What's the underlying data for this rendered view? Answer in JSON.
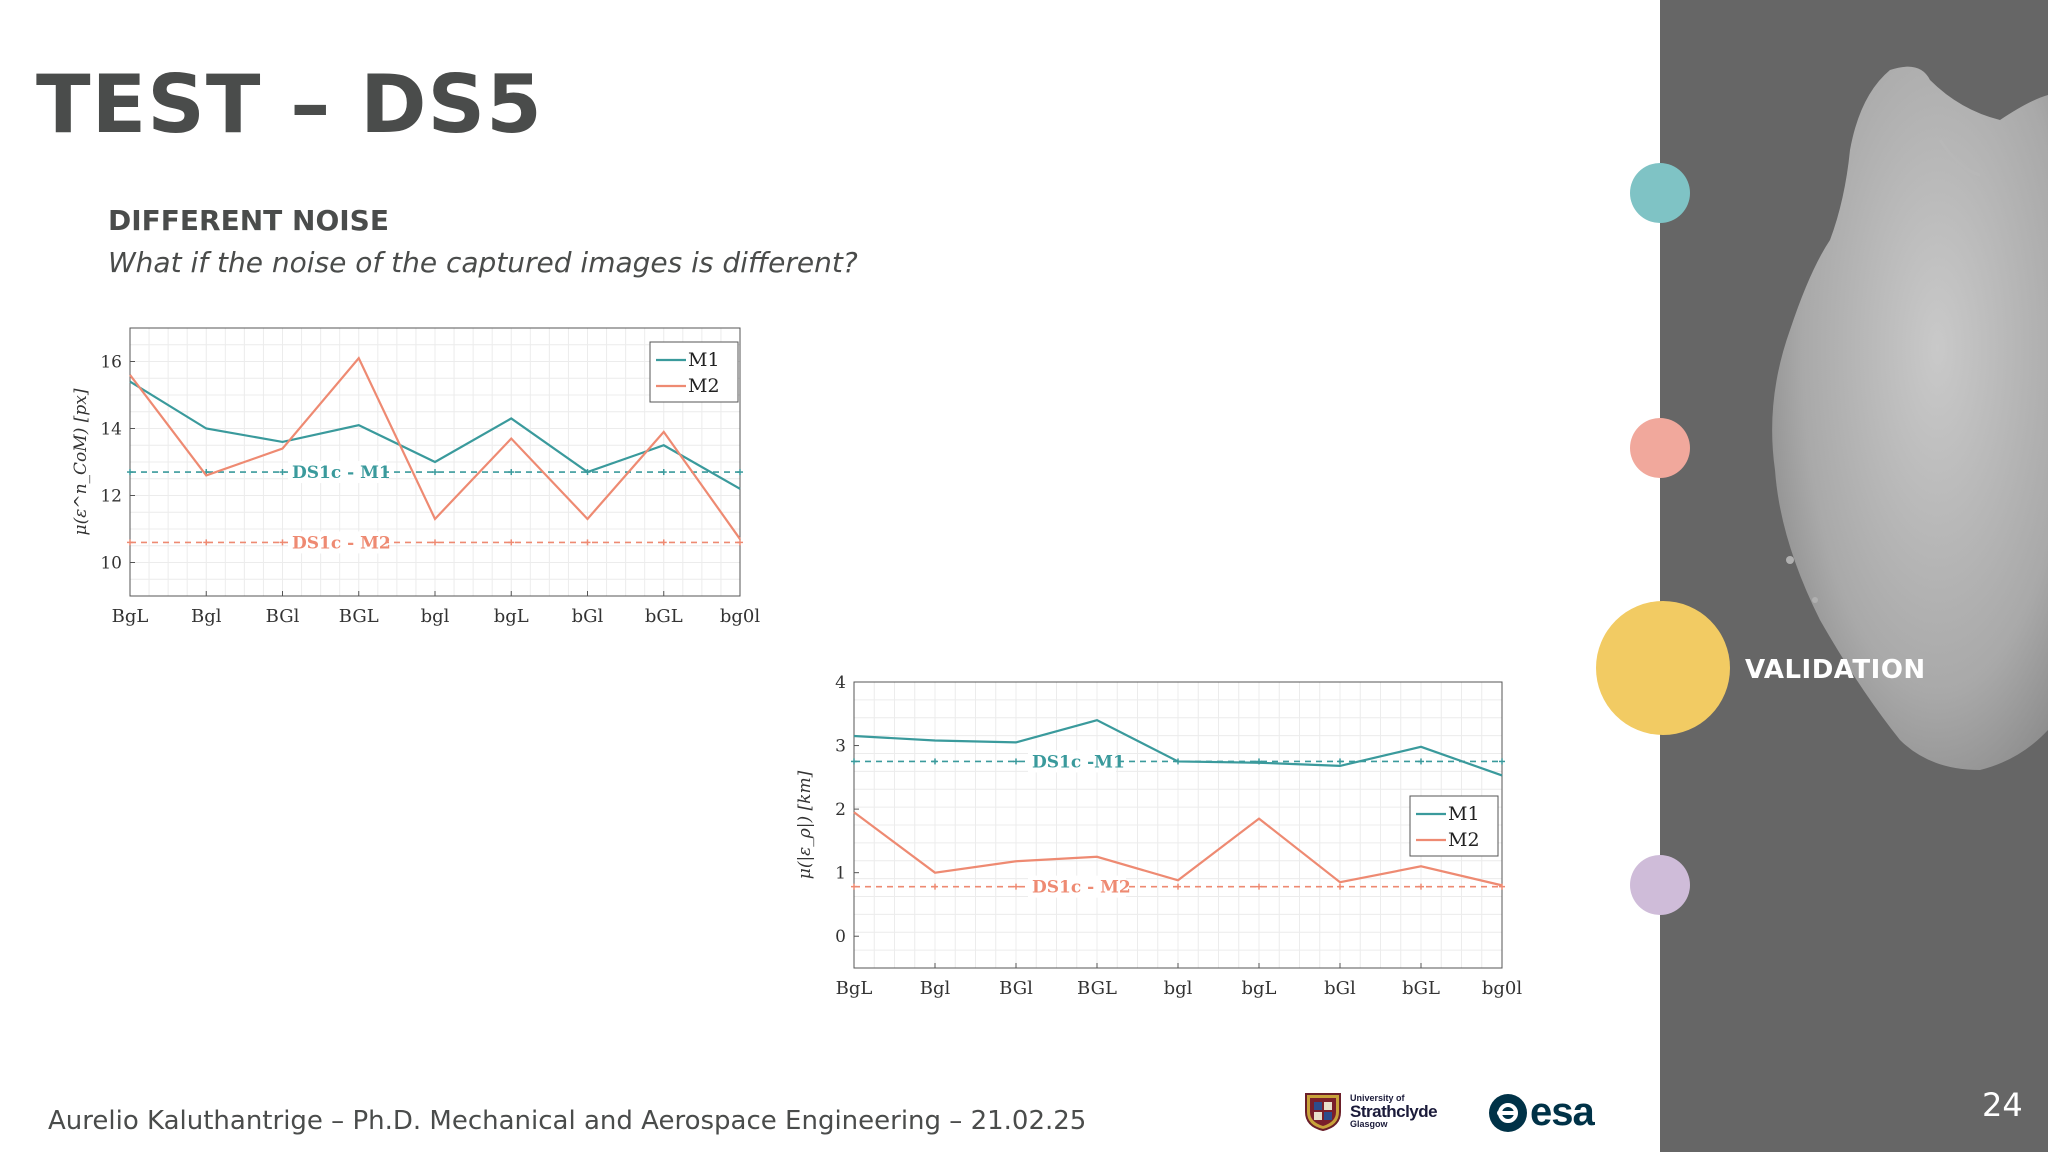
{
  "slide": {
    "title": "TEST – DS5",
    "subheading": "DIFFERENT NOISE",
    "question": "What if the noise of the captured images is different?",
    "footer": "Aurelio Kaluthantrige – Ph.D. Mechanical and Aerospace Engineering – 21.02.25",
    "page_number": "24",
    "section_label": "VALIDATION",
    "logos": {
      "strathclyde": {
        "line1": "University of",
        "line2": "Strathclyde",
        "line3": "Glasgow"
      },
      "esa": "esa"
    },
    "nav_dots": [
      {
        "color": "#7fc3c5",
        "active": false
      },
      {
        "color": "#f1a89c",
        "active": false
      },
      {
        "color": "#f2cb63",
        "active": true
      },
      {
        "color": "#cfbcd9",
        "active": false
      }
    ],
    "colors": {
      "teal": "#3a9a9c",
      "salmon": "#ee8a72",
      "dark_text": "#4a4c4b",
      "sidebar": "#666666"
    }
  },
  "chart_data": [
    {
      "type": "line",
      "categories": [
        "BgL",
        "Bgl",
        "BGl",
        "BGL",
        "bgl",
        "bgL",
        "bGl",
        "bGL",
        "bg0l"
      ],
      "series": [
        {
          "name": "M1",
          "color": "#3a9a9c",
          "values": [
            15.4,
            14.0,
            13.6,
            14.1,
            13.0,
            14.3,
            12.7,
            13.5,
            12.2
          ]
        },
        {
          "name": "M2",
          "color": "#ee8a72",
          "values": [
            15.6,
            12.6,
            13.4,
            16.1,
            11.3,
            13.7,
            11.3,
            13.9,
            10.7
          ]
        }
      ],
      "reference_lines": [
        {
          "label": "DS1c - M1",
          "value": 12.7,
          "color": "#3a9a9c"
        },
        {
          "label": "DS1c - M2",
          "value": 10.6,
          "color": "#ee8a72"
        }
      ],
      "ylabel": "μ(ε^n_CoM) [px]",
      "yticks": [
        10,
        12,
        14,
        16
      ],
      "ylim": [
        9,
        17
      ],
      "grid": true,
      "legend": "top-right"
    },
    {
      "type": "line",
      "categories": [
        "BgL",
        "Bgl",
        "BGl",
        "BGL",
        "bgl",
        "bgL",
        "bGl",
        "bGL",
        "bg0l"
      ],
      "series": [
        {
          "name": "M1",
          "color": "#3a9a9c",
          "values": [
            3.15,
            3.08,
            3.05,
            3.4,
            2.75,
            2.73,
            2.68,
            2.98,
            2.53
          ]
        },
        {
          "name": "M2",
          "color": "#ee8a72",
          "values": [
            1.95,
            1.0,
            1.18,
            1.25,
            0.88,
            1.85,
            0.85,
            1.1,
            0.8
          ]
        }
      ],
      "reference_lines": [
        {
          "label": "DS1c -M1",
          "value": 2.75,
          "color": "#3a9a9c"
        },
        {
          "label": "DS1c - M2",
          "value": 0.78,
          "color": "#ee8a72"
        }
      ],
      "ylabel": "μ(|ε_ρ|) [km]",
      "yticks": [
        0,
        1,
        2,
        3,
        4
      ],
      "ylim": [
        -0.5,
        4
      ],
      "grid": true,
      "legend": "right"
    }
  ]
}
